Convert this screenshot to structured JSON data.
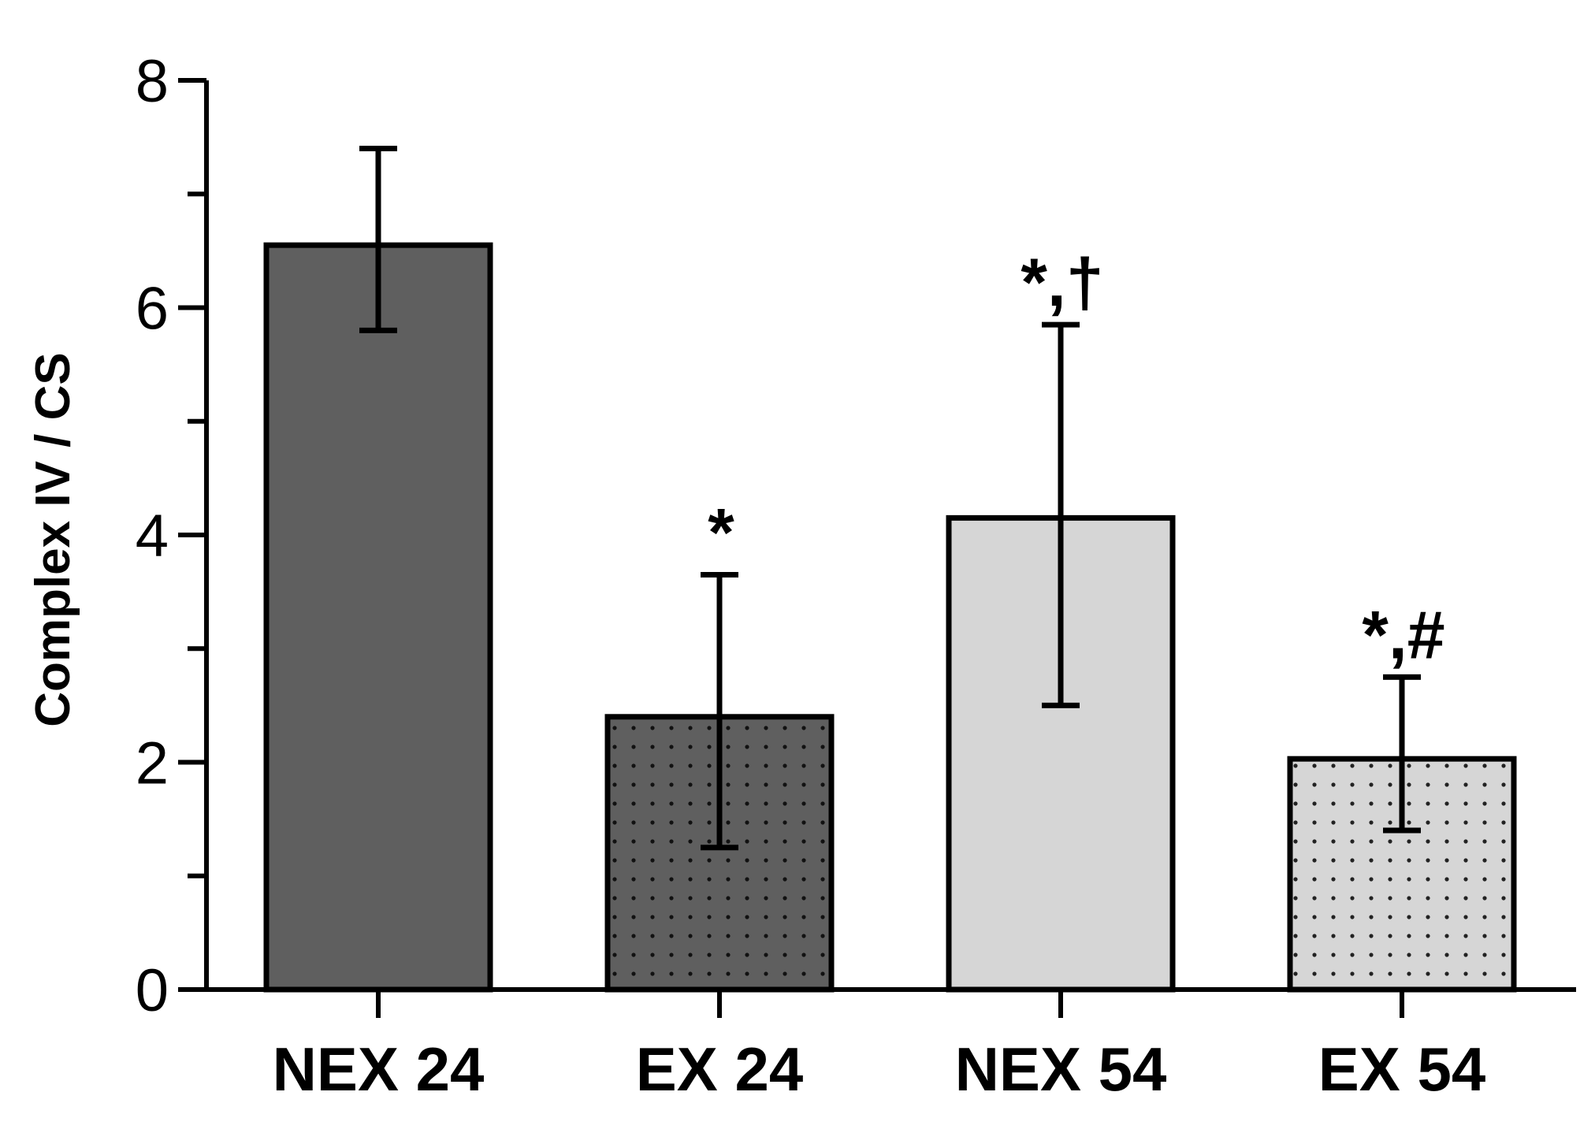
{
  "chart_data": {
    "type": "bar",
    "title": "",
    "xlabel": "",
    "ylabel": "Complex IV / CS",
    "ylim": [
      0,
      8
    ],
    "yticks": [
      0,
      2,
      4,
      6,
      8
    ],
    "categories": [
      "NEX 24",
      "EX 24",
      "NEX 54",
      "EX 54"
    ],
    "values": [
      6.55,
      2.4,
      4.15,
      2.03
    ],
    "error_upper": [
      7.4,
      3.65,
      5.85,
      2.75
    ],
    "error_lower": [
      5.8,
      1.25,
      2.5,
      1.4
    ],
    "annotations": [
      "",
      "*",
      "*,†",
      "*,#"
    ],
    "grid": false,
    "bar_styles": [
      {
        "fill": "#5f5f5f",
        "pattern": "none"
      },
      {
        "fill": "#5f5f5f",
        "pattern": "dots"
      },
      {
        "fill": "#d6d6d6",
        "pattern": "none"
      },
      {
        "fill": "#d6d6d6",
        "pattern": "dots"
      }
    ]
  }
}
